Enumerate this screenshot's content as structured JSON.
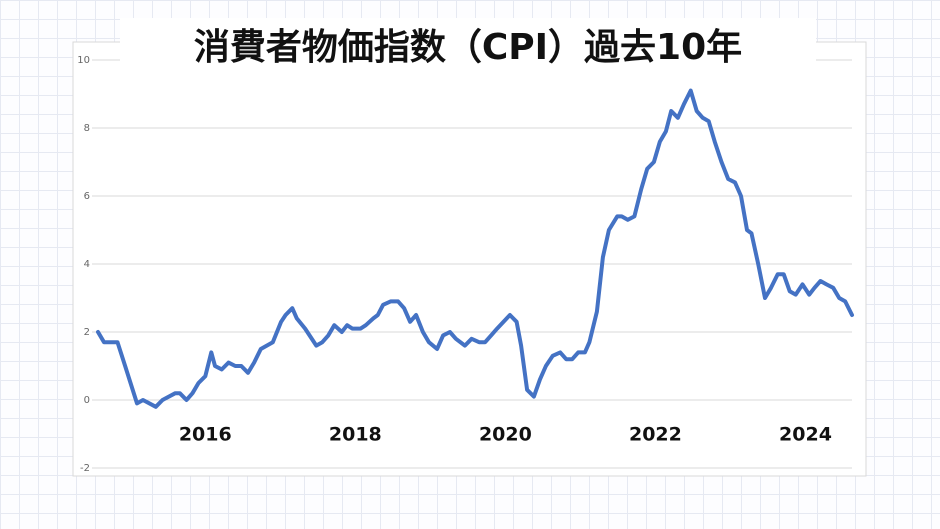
{
  "chart_data": {
    "type": "line",
    "title": "消費者物価指数（CPI）過去10年",
    "color": "#4472c4",
    "grid": true,
    "xlim": [
      2014.57,
      2024.62
    ],
    "xticks": [
      2016,
      2018,
      2020,
      2022,
      2024
    ],
    "ylim": [
      -2,
      10
    ],
    "yticks": [
      -2,
      0,
      2,
      4,
      6,
      8,
      10
    ],
    "x": [
      2014.57,
      2014.65,
      2014.83,
      2014.96,
      2015.09,
      2015.17,
      2015.34,
      2015.43,
      2015.6,
      2015.66,
      2015.75,
      2015.83,
      2015.91,
      2016.0,
      2016.08,
      2016.13,
      2016.22,
      2016.31,
      2016.4,
      2016.48,
      2016.57,
      2016.65,
      2016.74,
      2016.9,
      2017.01,
      2017.07,
      2017.16,
      2017.22,
      2017.33,
      2017.48,
      2017.56,
      2017.64,
      2017.72,
      2017.82,
      2017.89,
      2017.96,
      2018.07,
      2018.14,
      2018.24,
      2018.3,
      2018.37,
      2018.47,
      2018.57,
      2018.65,
      2018.73,
      2018.81,
      2018.9,
      2018.98,
      2019.09,
      2019.17,
      2019.26,
      2019.34,
      2019.46,
      2019.55,
      2019.65,
      2019.73,
      2019.81,
      2019.89,
      2020.06,
      2020.15,
      2020.21,
      2020.29,
      2020.38,
      2020.46,
      2020.54,
      2020.63,
      2020.73,
      2020.81,
      2020.89,
      2020.97,
      2021.06,
      2021.12,
      2021.22,
      2021.3,
      2021.38,
      2021.49,
      2021.55,
      2021.63,
      2021.72,
      2021.81,
      2021.89,
      2021.98,
      2022.06,
      2022.14,
      2022.21,
      2022.3,
      2022.38,
      2022.47,
      2022.55,
      2022.63,
      2022.71,
      2022.79,
      2022.88,
      2022.97,
      2023.06,
      2023.14,
      2023.22,
      2023.28,
      2023.37,
      2023.46,
      2023.54,
      2023.63,
      2023.71,
      2023.79,
      2023.87,
      2023.96,
      2024.05,
      2024.12,
      2024.2,
      2024.28,
      2024.37,
      2024.45,
      2024.53,
      2024.62
    ],
    "values": [
      2.0,
      1.7,
      1.7,
      0.8,
      -0.1,
      0.0,
      -0.2,
      0.0,
      0.2,
      0.2,
      0.0,
      0.2,
      0.5,
      0.7,
      1.4,
      1.0,
      0.9,
      1.1,
      1.0,
      1.0,
      0.8,
      1.1,
      1.5,
      1.7,
      2.3,
      2.5,
      2.7,
      2.4,
      2.1,
      1.6,
      1.7,
      1.9,
      2.2,
      2.0,
      2.2,
      2.1,
      2.1,
      2.2,
      2.4,
      2.5,
      2.8,
      2.9,
      2.9,
      2.7,
      2.3,
      2.5,
      2.0,
      1.7,
      1.5,
      1.9,
      2.0,
      1.8,
      1.6,
      1.8,
      1.7,
      1.7,
      1.9,
      2.1,
      2.5,
      2.3,
      1.6,
      0.3,
      0.1,
      0.6,
      1.0,
      1.3,
      1.4,
      1.2,
      1.2,
      1.4,
      1.4,
      1.7,
      2.6,
      4.2,
      5.0,
      5.4,
      5.4,
      5.3,
      5.4,
      6.2,
      6.8,
      7.0,
      7.6,
      7.9,
      8.5,
      8.3,
      8.7,
      9.1,
      8.5,
      8.3,
      8.2,
      7.6,
      7.0,
      6.5,
      6.4,
      6.0,
      5.0,
      4.9,
      4.0,
      3.0,
      3.3,
      3.7,
      3.7,
      3.2,
      3.1,
      3.4,
      3.1,
      3.3,
      3.5,
      3.4,
      3.3,
      3.0,
      2.9,
      2.5
    ]
  }
}
